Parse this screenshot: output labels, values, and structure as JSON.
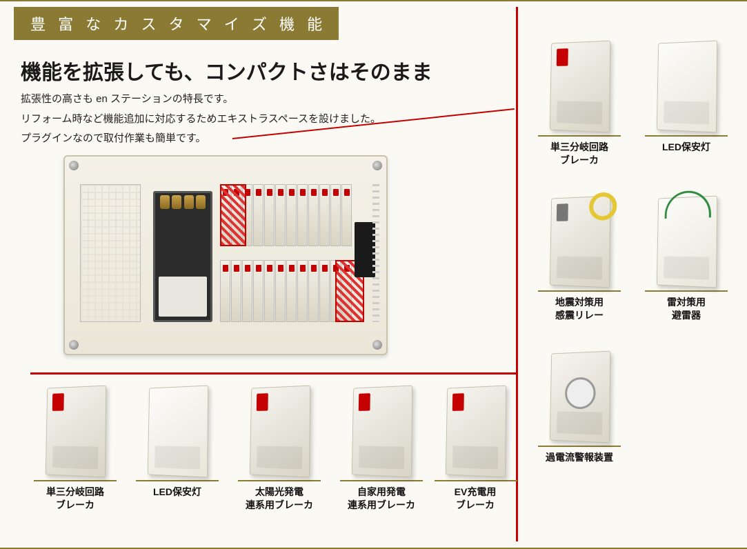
{
  "badge": "豊 富 な カ ス タ マ イ ズ 機 能",
  "headline": "機能を拡張しても、コンパクトさはそのまま",
  "desc_lines": [
    "拡張性の高さも en ステーションの特長です。",
    "リフォーム時など機能追加に対応するためエキストラスペースを設けました。",
    "プラグインなので取付作業も簡単です。"
  ],
  "colors": {
    "accent_red": "#c40000",
    "brand_olive": "#8a7a33",
    "page_bg": "#fbf9f4"
  },
  "bottom_modules": [
    {
      "cap": "単三分岐回路\nブレーカ",
      "variant": "brk"
    },
    {
      "cap": "LED保安灯",
      "variant": "light"
    },
    {
      "cap": "太陽光発電\n連系用ブレーカ",
      "variant": "brk"
    },
    {
      "cap": "自家用発電\n連系用ブレーカ",
      "variant": "brk"
    },
    {
      "cap": "EV充電用\nブレーカ",
      "variant": "brk"
    }
  ],
  "right_modules": [
    {
      "cap": "単三分岐回路\nブレーカ",
      "variant": "brk"
    },
    {
      "cap": "LED保安灯",
      "variant": "light"
    },
    {
      "cap": "地震対策用\n感震リレー",
      "variant": "relay"
    },
    {
      "cap": "雷対策用\n避雷器",
      "variant": "spd"
    },
    {
      "cap": "過電流警報装置",
      "variant": "timer"
    }
  ]
}
